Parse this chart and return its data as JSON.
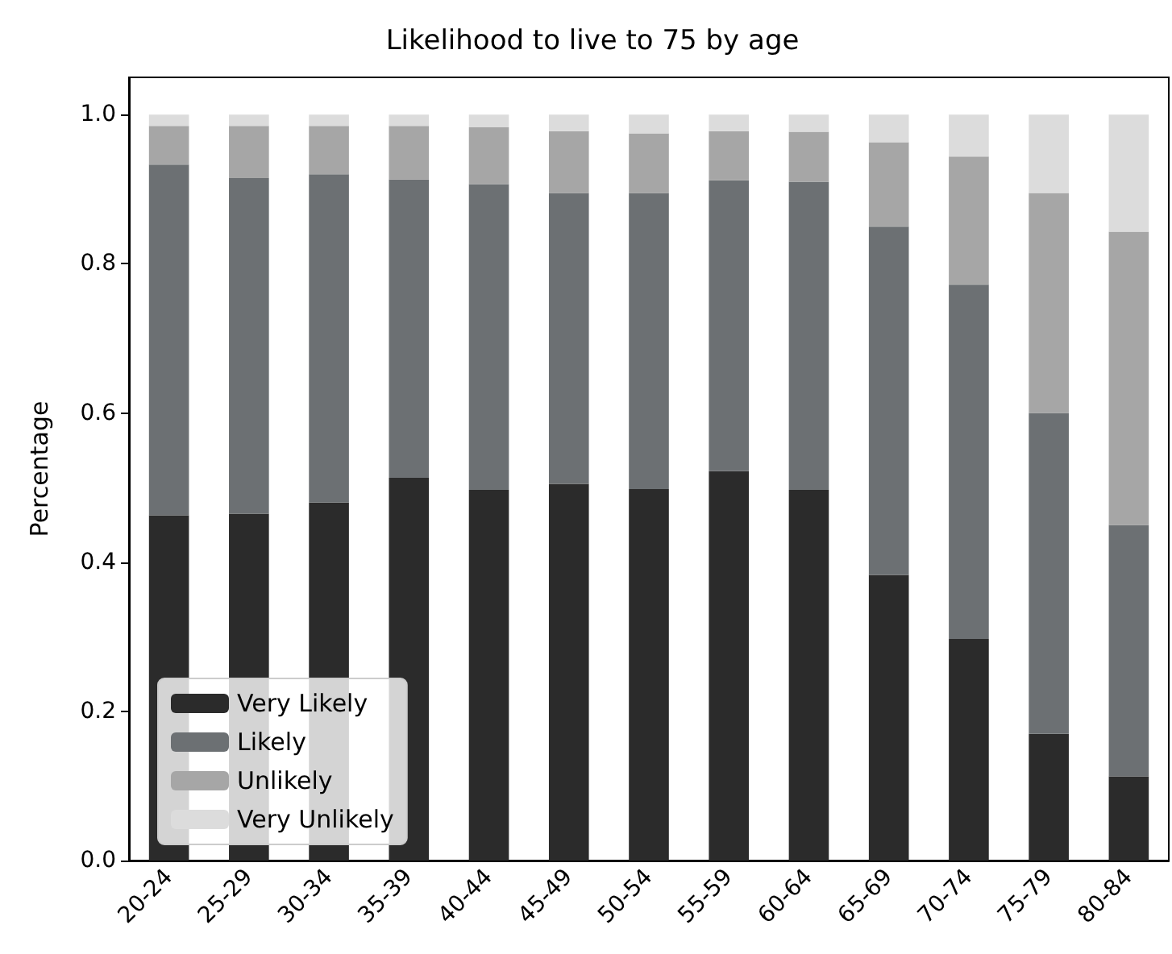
{
  "chart_data": {
    "type": "bar",
    "title": "Likelihood to live to 75 by age",
    "ylabel": "Percentage",
    "stacked": true,
    "legend": "bottom left",
    "grid": false,
    "categories": [
      "20-24",
      "25-29",
      "30-34",
      "35-39",
      "40-44",
      "45-49",
      "50-54",
      "55-59",
      "60-64",
      "65-69",
      "70-74",
      "75-79",
      "80-84"
    ],
    "ylim": [
      0,
      1.05
    ],
    "yticks": [
      {
        "value": 0,
        "label": "0.0"
      },
      {
        "value": 0.2,
        "label": "0.2"
      },
      {
        "value": 0.4,
        "label": "0.4"
      },
      {
        "value": 0.6,
        "label": "0.6"
      },
      {
        "value": 0.8,
        "label": "0.8"
      },
      {
        "value": 1,
        "label": "1.0"
      }
    ],
    "series": [
      {
        "name": "Very Likely",
        "color": "#2b2b2b",
        "values": [
          0.463,
          0.465,
          0.48,
          0.513,
          0.497,
          0.505,
          0.498,
          0.522,
          0.497,
          0.383,
          0.297,
          0.17,
          0.113
        ]
      },
      {
        "name": "Likely",
        "color": "#6c7073",
        "values": [
          0.47,
          0.45,
          0.44,
          0.4,
          0.41,
          0.39,
          0.397,
          0.39,
          0.413,
          0.467,
          0.475,
          0.43,
          0.337
        ]
      },
      {
        "name": "Unlikely",
        "color": "#a6a6a6",
        "values": [
          0.052,
          0.07,
          0.065,
          0.072,
          0.076,
          0.083,
          0.08,
          0.066,
          0.067,
          0.113,
          0.172,
          0.295,
          0.393
        ]
      },
      {
        "name": "Very Unlikely",
        "color": "#dcdcdc",
        "values": [
          0.015,
          0.015,
          0.015,
          0.015,
          0.017,
          0.022,
          0.025,
          0.022,
          0.023,
          0.037,
          0.056,
          0.105,
          0.157
        ]
      }
    ]
  }
}
